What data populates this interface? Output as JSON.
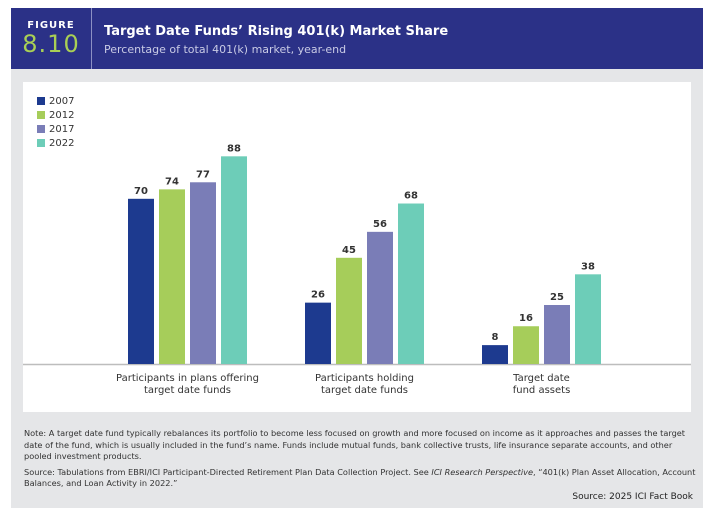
{
  "header": {
    "figure_label": "FIGURE",
    "figure_number": "8.10",
    "title": "Target Date Funds’ Rising 401(k) Market Share",
    "subtitle": "Percentage of total 401(k) market, year-end"
  },
  "colors": {
    "header_bg": "#2b3187",
    "figure_number": "#a9cf55",
    "series_2007": "#1d3a8f",
    "series_2012": "#a6cd5a",
    "series_2017": "#7a7db7",
    "series_2022": "#6dcdb8"
  },
  "chart_data": {
    "type": "bar",
    "title": "Target Date Funds’ Rising 401(k) Market Share",
    "subtitle": "Percentage of total 401(k) market, year-end",
    "xlabel": "",
    "ylabel": "",
    "ylim": [
      0,
      100
    ],
    "grid": false,
    "legend_position": "top-left",
    "categories": [
      [
        "Participants in plans offering",
        "target date funds"
      ],
      [
        "Participants holding",
        "target date funds"
      ],
      [
        "Target date",
        "fund assets"
      ]
    ],
    "series": [
      {
        "name": "2007",
        "color": "#1d3a8f",
        "values": [
          70,
          26,
          8
        ]
      },
      {
        "name": "2012",
        "color": "#a6cd5a",
        "values": [
          74,
          45,
          16
        ]
      },
      {
        "name": "2017",
        "color": "#7a7db7",
        "values": [
          77,
          56,
          25
        ]
      },
      {
        "name": "2022",
        "color": "#6dcdb8",
        "values": [
          88,
          68,
          38
        ]
      }
    ]
  },
  "legend": [
    {
      "label": "2007",
      "color": "#1d3a8f"
    },
    {
      "label": "2012",
      "color": "#a6cd5a"
    },
    {
      "label": "2017",
      "color": "#7a7db7"
    },
    {
      "label": "2022",
      "color": "#6dcdb8"
    }
  ],
  "footer": {
    "note": "Note: A target date fund typically rebalances its portfolio to become less focused on growth and more focused on income as it approaches and passes the target date of the fund, which is usually included in the fund’s name. Funds include mutual funds, bank collective trusts, life insurance separate accounts, and other pooled investment products.",
    "source_prefix": "Source: Tabulations from EBRI/ICI Participant-Directed Retirement Plan Data Collection Project. See ",
    "source_italic": "ICI Research Perspective",
    "source_suffix": ", “401(k) Plan Asset Allocation, Account Balances, and Loan Activity in 2022.”",
    "credit": "Source: 2025 ICI Fact Book"
  }
}
